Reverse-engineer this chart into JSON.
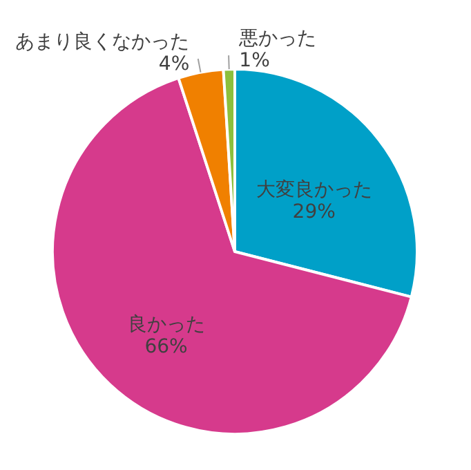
{
  "chart_data": {
    "type": "pie",
    "categories": [
      "大変良かった",
      "良かった",
      "あまり良くなかった",
      "悪かった"
    ],
    "values": [
      29,
      66,
      4,
      1
    ],
    "colors": [
      "#00a0c8",
      "#d63a8c",
      "#f08000",
      "#8cc03c"
    ],
    "value_labels": [
      "29%",
      "66%",
      "4%",
      "1%"
    ]
  }
}
